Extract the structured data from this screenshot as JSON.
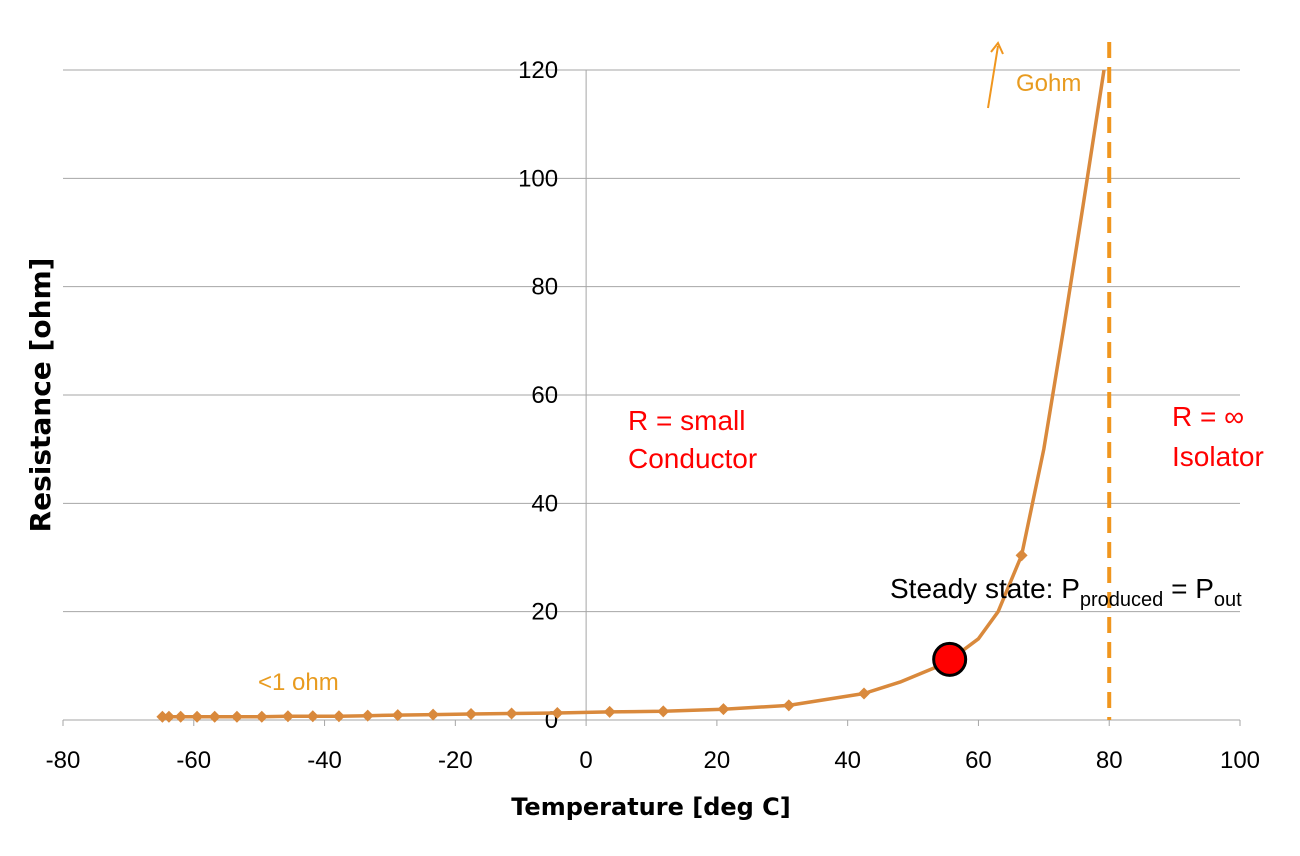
{
  "chart_data": {
    "type": "line",
    "title": "",
    "xlabel": "Temperature [deg C]",
    "ylabel": "Resistance [ohm]",
    "xlim": [
      -80,
      100
    ],
    "ylim": [
      0,
      120
    ],
    "xticks": [
      "-80",
      "-60",
      "-40",
      "-20",
      "0",
      "20",
      "40",
      "60",
      "80",
      "100"
    ],
    "yticks": [
      "0",
      "20",
      "40",
      "60",
      "80",
      "100",
      "120"
    ],
    "grid": "horizontal",
    "series": [
      {
        "color": "#d9893c",
        "marker": "diamond",
        "x": [
          -64.8,
          -63.8,
          -62.0,
          -59.5,
          -56.8,
          -53.4,
          -49.6,
          -45.6,
          -41.8,
          -37.8,
          -33.4,
          -28.8,
          -23.4,
          -17.6,
          -11.4,
          -4.4,
          3.6,
          11.8,
          21.0,
          31.0,
          42.5,
          66.6
        ],
        "y": [
          0.6,
          0.6,
          0.6,
          0.6,
          0.6,
          0.6,
          0.6,
          0.7,
          0.7,
          0.7,
          0.8,
          0.9,
          1.0,
          1.1,
          1.2,
          1.3,
          1.5,
          1.6,
          2.0,
          2.7,
          4.9,
          30.4
        ]
      }
    ],
    "curve_tail": {
      "x": [
        48.0,
        55.0,
        60.0,
        63.0,
        66.6,
        70.0,
        73.0,
        76.0,
        79.2
      ],
      "y": [
        7.0,
        10.5,
        15.0,
        20.0,
        30.4,
        50.0,
        72.0,
        95.0,
        120.0
      ]
    },
    "threshold_line": {
      "x": 80,
      "color": "#f0961e",
      "style": "dashed"
    },
    "highlight_point": {
      "x": 55.6,
      "y": 11.2,
      "color": "#ff0000"
    },
    "annotations": {
      "small_r": "R = small",
      "conductor": "Conductor",
      "inf_r": "R = ∞",
      "isolator": "Isolator",
      "gohm": "Gohm",
      "lt1ohm": "<1 ohm",
      "steady_prefix": "Steady state: P",
      "steady_sub1": "produced",
      "steady_mid": " = P",
      "steady_sub2": "out"
    }
  }
}
